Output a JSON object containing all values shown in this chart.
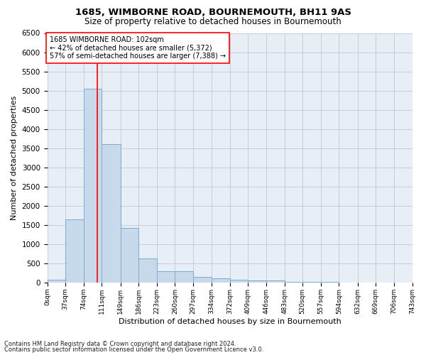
{
  "title": "1685, WIMBORNE ROAD, BOURNEMOUTH, BH11 9AS",
  "subtitle": "Size of property relative to detached houses in Bournemouth",
  "xlabel": "Distribution of detached houses by size in Bournemouth",
  "ylabel": "Number of detached properties",
  "bar_color": "#c9d9ec",
  "bar_edge_color": "#7aadd4",
  "background_color": "#ffffff",
  "grid_color": "#c0c8d8",
  "annotation_line1": "1685 WIMBORNE ROAD: 102sqm",
  "annotation_line2": "← 42% of detached houses are smaller (5,372)",
  "annotation_line3": "57% of semi-detached houses are larger (7,388) →",
  "property_sqm": 102,
  "bin_edges": [
    0,
    37,
    74,
    111,
    149,
    186,
    223,
    260,
    297,
    334,
    372,
    409,
    446,
    483,
    520,
    557,
    594,
    632,
    669,
    706,
    743
  ],
  "bar_heights": [
    75,
    1650,
    5050,
    3600,
    1420,
    620,
    290,
    290,
    145,
    105,
    75,
    50,
    55,
    20,
    15,
    10,
    5,
    5,
    5,
    5
  ],
  "ylim": [
    0,
    6500
  ],
  "yticks": [
    0,
    500,
    1000,
    1500,
    2000,
    2500,
    3000,
    3500,
    4000,
    4500,
    5000,
    5500,
    6000,
    6500
  ],
  "footer1": "Contains HM Land Registry data © Crown copyright and database right 2024.",
  "footer2": "Contains public sector information licensed under the Open Government Licence v3.0."
}
